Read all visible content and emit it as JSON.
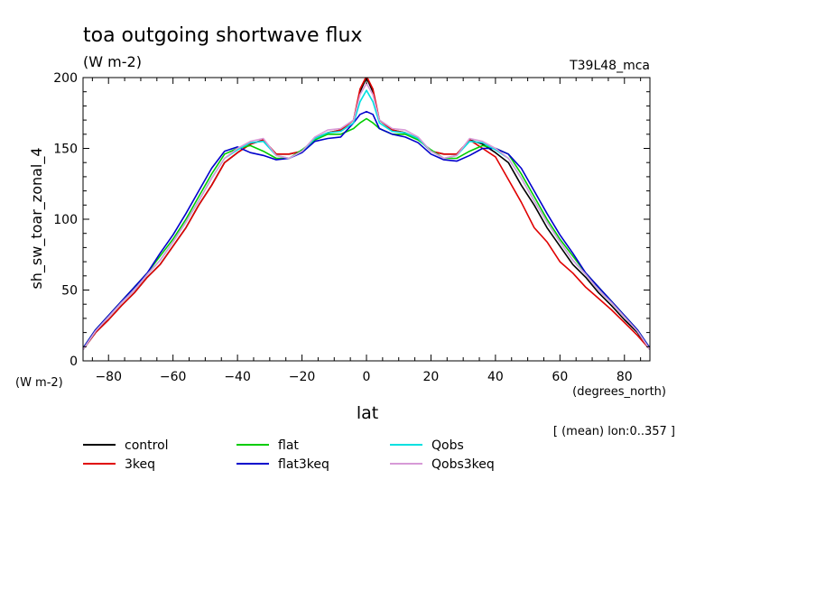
{
  "chart_data": {
    "type": "line",
    "title": "toa outgoing shortwave flux",
    "units_label": "(W m-2)",
    "experiment_label": "T39L48_mca",
    "ylabel": "sh_sw_toar_zonal_4",
    "y_units": "(W m-2)",
    "xlabel": "lat",
    "x_units": "(degrees_north)",
    "averaging_note": "[ (mean) lon:0..357 ]",
    "xlim": [
      -87.9,
      87.9
    ],
    "ylim": [
      0,
      200
    ],
    "x_ticks": [
      -80,
      -60,
      -40,
      -20,
      0,
      20,
      40,
      60,
      80
    ],
    "y_ticks": [
      0,
      50,
      100,
      150,
      200
    ],
    "grid": false,
    "legend_position": "bottom",
    "x": [
      -87.9,
      -84,
      -80,
      -76,
      -72,
      -68,
      -64,
      -60,
      -56,
      -52,
      -48,
      -44,
      -40,
      -36,
      -32,
      -28,
      -24,
      -20,
      -16,
      -12,
      -8,
      -4,
      -2,
      0,
      2,
      4,
      8,
      12,
      16,
      20,
      24,
      28,
      32,
      36,
      40,
      44,
      48,
      52,
      56,
      60,
      64,
      68,
      72,
      76,
      80,
      84,
      87.9
    ],
    "series": [
      {
        "name": "control",
        "color": "#000000",
        "values": [
          8,
          20,
          29,
          39,
          48,
          59,
          68,
          81,
          94,
          110,
          124,
          140,
          147,
          153,
          156,
          146,
          146,
          148,
          157,
          161,
          163,
          170,
          190,
          200,
          190,
          170,
          163,
          161,
          157,
          148,
          146,
          146,
          156,
          153,
          147,
          140,
          124,
          110,
          94,
          81,
          68,
          59,
          48,
          39,
          29,
          20,
          8
        ]
      },
      {
        "name": "3keq",
        "color": "#e00000",
        "values": [
          8,
          20,
          29,
          39,
          48,
          59,
          68,
          81,
          94,
          110,
          124,
          140,
          147,
          153,
          156,
          146,
          146,
          148,
          157,
          161,
          163,
          170,
          192,
          201,
          192,
          170,
          163,
          161,
          157,
          148,
          146,
          146,
          156,
          150,
          144,
          128,
          112,
          94,
          84,
          70,
          62,
          52,
          44,
          36,
          27,
          18,
          8
        ]
      },
      {
        "name": "flat",
        "color": "#00cc00",
        "values": [
          9,
          22,
          32,
          42,
          52,
          62,
          74,
          86,
          100,
          116,
          132,
          146,
          150,
          152,
          148,
          143,
          143,
          149,
          156,
          160,
          160,
          164,
          168,
          171,
          168,
          164,
          160,
          160,
          156,
          149,
          143,
          143,
          148,
          152,
          150,
          146,
          132,
          116,
          100,
          86,
          74,
          62,
          52,
          42,
          32,
          22,
          9
        ]
      },
      {
        "name": "flat3keq",
        "color": "#0000cc",
        "values": [
          9,
          22,
          32,
          42,
          52,
          62,
          76,
          89,
          104,
          120,
          136,
          148,
          151,
          147,
          145,
          142,
          143,
          147,
          155,
          157,
          158,
          168,
          174,
          176,
          174,
          164,
          160,
          158,
          154,
          146,
          142,
          141,
          145,
          150,
          150,
          146,
          136,
          120,
          104,
          89,
          76,
          62,
          52,
          42,
          32,
          22,
          9
        ]
      },
      {
        "name": "Qobs",
        "color": "#00e0e0",
        "values": [
          8,
          21,
          31,
          41,
          50,
          61,
          71,
          84,
          98,
          113,
          129,
          143,
          149,
          154,
          155,
          145,
          143,
          148,
          157,
          161,
          162,
          168,
          183,
          191,
          183,
          168,
          162,
          161,
          157,
          148,
          143,
          145,
          155,
          154,
          149,
          143,
          129,
          113,
          98,
          84,
          71,
          61,
          50,
          41,
          31,
          21,
          8
        ]
      },
      {
        "name": "Qobs3keq",
        "color": "#d79ad7",
        "values": [
          8,
          21,
          31,
          41,
          50,
          61,
          71,
          84,
          98,
          113,
          129,
          143,
          150,
          155,
          157,
          145,
          143,
          148,
          158,
          163,
          164,
          170,
          188,
          196,
          188,
          170,
          164,
          163,
          158,
          148,
          143,
          145,
          157,
          155,
          150,
          143,
          129,
          113,
          98,
          84,
          71,
          61,
          50,
          41,
          31,
          21,
          8
        ]
      }
    ]
  }
}
